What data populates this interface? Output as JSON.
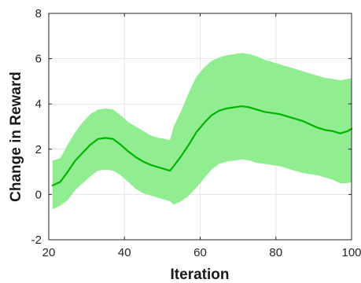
{
  "chart_data": {
    "type": "line",
    "title": "",
    "xlabel": "Iteration",
    "ylabel": "Change in Reward",
    "xlim": [
      20,
      100
    ],
    "ylim": [
      -2,
      8
    ],
    "xticks": [
      20,
      40,
      60,
      80,
      100
    ],
    "yticks": [
      -2,
      0,
      2,
      4,
      6,
      8
    ],
    "grid": true,
    "legend": "none",
    "colors": {
      "line": "#00b400",
      "band": "#90ee90"
    },
    "series": [
      {
        "x": [
          21,
          23,
          25,
          27,
          29,
          31,
          33,
          35,
          37,
          39,
          41,
          43,
          45,
          47,
          49,
          51,
          52,
          53,
          55,
          57,
          59,
          61,
          63,
          65,
          67,
          69,
          71,
          73,
          75,
          77,
          79,
          81,
          83,
          85,
          87,
          89,
          91,
          93,
          95,
          97,
          99,
          100
        ],
        "mean": [
          0.4,
          0.55,
          1.0,
          1.5,
          1.85,
          2.2,
          2.45,
          2.5,
          2.45,
          2.2,
          1.9,
          1.65,
          1.45,
          1.3,
          1.2,
          1.1,
          1.05,
          1.25,
          1.7,
          2.2,
          2.75,
          3.15,
          3.5,
          3.7,
          3.8,
          3.85,
          3.9,
          3.85,
          3.75,
          3.65,
          3.6,
          3.55,
          3.45,
          3.35,
          3.25,
          3.1,
          2.95,
          2.85,
          2.8,
          2.7,
          2.8,
          2.9
        ],
        "upper": [
          1.5,
          1.6,
          2.2,
          2.75,
          3.2,
          3.55,
          3.75,
          3.8,
          3.75,
          3.5,
          3.2,
          3.0,
          2.8,
          2.6,
          2.5,
          2.45,
          2.4,
          3.0,
          3.7,
          4.5,
          5.2,
          5.6,
          5.9,
          6.05,
          6.15,
          6.2,
          6.25,
          6.2,
          6.1,
          5.95,
          5.85,
          5.75,
          5.65,
          5.55,
          5.45,
          5.35,
          5.25,
          5.15,
          5.1,
          5.05,
          5.1,
          5.15
        ],
        "lower": [
          -0.65,
          -0.5,
          -0.25,
          0.2,
          0.5,
          0.8,
          1.05,
          1.1,
          1.05,
          0.85,
          0.55,
          0.25,
          0.05,
          -0.05,
          -0.15,
          -0.25,
          -0.3,
          -0.45,
          -0.3,
          -0.05,
          0.3,
          0.7,
          1.1,
          1.35,
          1.45,
          1.5,
          1.55,
          1.5,
          1.4,
          1.35,
          1.3,
          1.25,
          1.15,
          1.05,
          0.95,
          0.9,
          0.85,
          0.75,
          0.65,
          0.5,
          0.5,
          0.55
        ]
      }
    ]
  }
}
